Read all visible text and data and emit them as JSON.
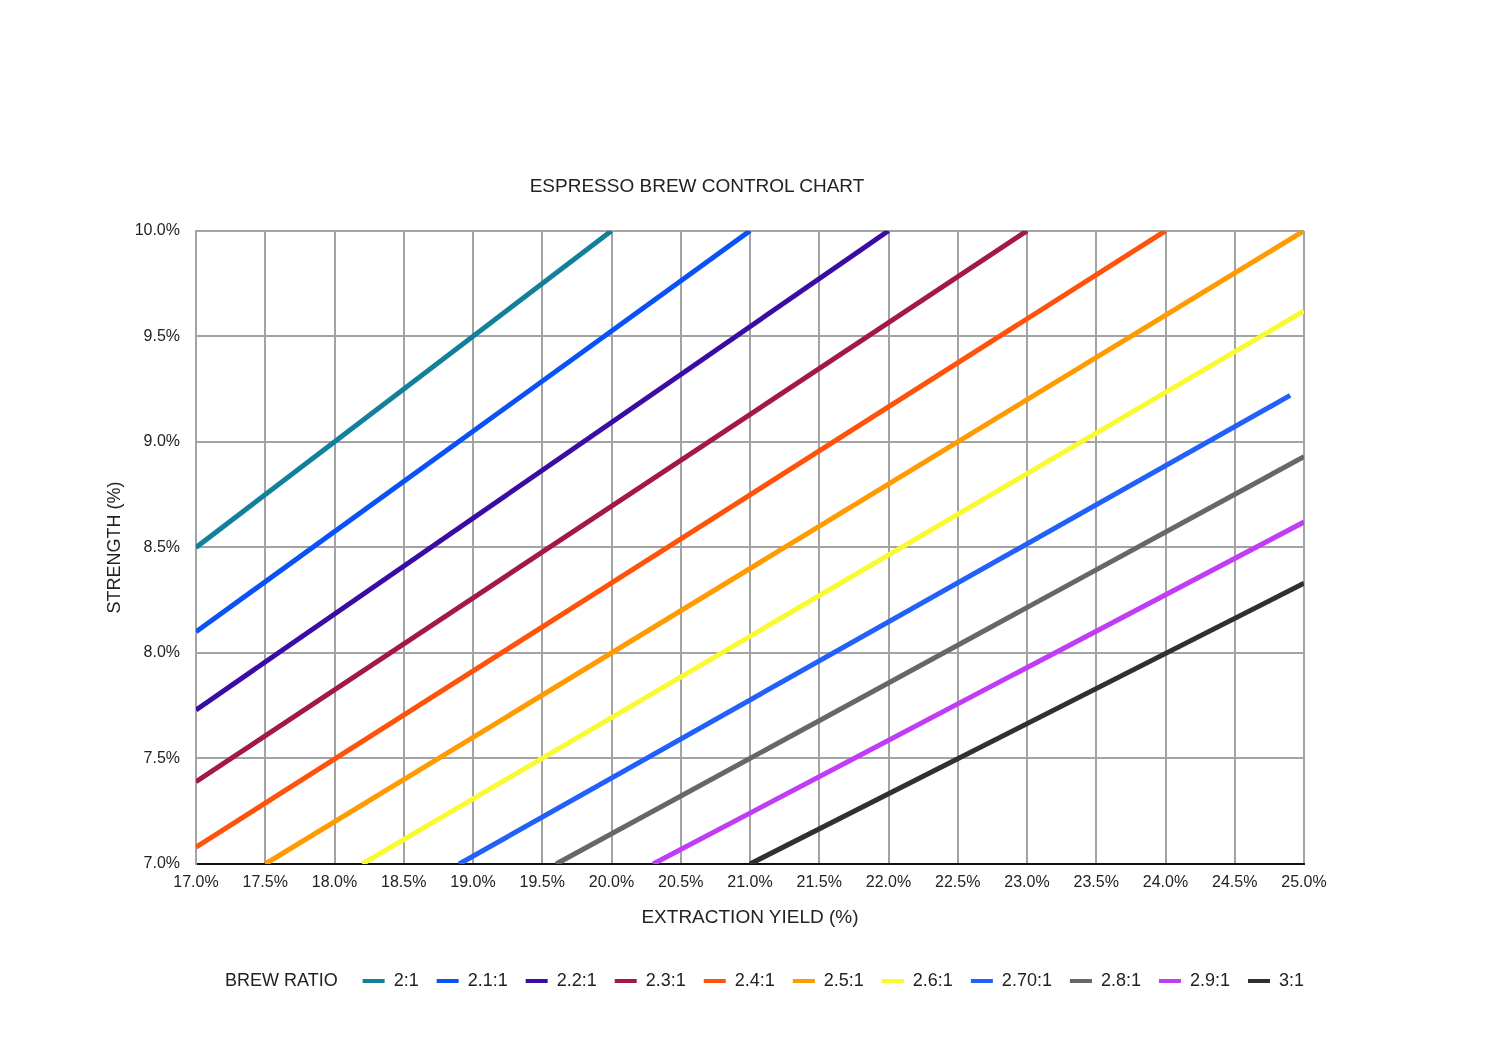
{
  "chart_data": {
    "type": "line",
    "title": "ESPRESSO BREW CONTROL CHART",
    "xlabel": "EXTRACTION YIELD (%)",
    "ylabel": "STRENGTH (%)",
    "legend_title": "BREW RATIO",
    "legend": "bottom",
    "grid": true,
    "marker": "none",
    "line_style": "solid",
    "xlim": [
      17,
      25
    ],
    "xticks": [
      {
        "value": 17,
        "label": "17.0%"
      },
      {
        "value": 17.5,
        "label": "17.5%"
      },
      {
        "value": 18,
        "label": "18.0%"
      },
      {
        "value": 18.5,
        "label": "18.5%"
      },
      {
        "value": 19,
        "label": "19.0%"
      },
      {
        "value": 19.5,
        "label": "19.5%"
      },
      {
        "value": 20,
        "label": "20.0%"
      },
      {
        "value": 20.5,
        "label": "20.5%"
      },
      {
        "value": 21,
        "label": "21.0%"
      },
      {
        "value": 21.5,
        "label": "21.5%"
      },
      {
        "value": 22,
        "label": "22.0%"
      },
      {
        "value": 22.5,
        "label": "22.5%"
      },
      {
        "value": 23,
        "label": "23.0%"
      },
      {
        "value": 23.5,
        "label": "23.5%"
      },
      {
        "value": 24,
        "label": "24.0%"
      },
      {
        "value": 24.5,
        "label": "24.5%"
      },
      {
        "value": 25,
        "label": "25.0%"
      }
    ],
    "ylim": [
      7,
      10
    ],
    "yticks": [
      {
        "value": 7,
        "label": "7.0%"
      },
      {
        "value": 7.5,
        "label": "7.5%"
      },
      {
        "value": 8,
        "label": "8.0%"
      },
      {
        "value": 8.5,
        "label": "8.5%"
      },
      {
        "value": 9,
        "label": "9.0%"
      },
      {
        "value": 9.5,
        "label": "9.5%"
      },
      {
        "value": 10,
        "label": "10.0%"
      }
    ],
    "series": [
      {
        "name": "2:1",
        "color": "#13809b",
        "x": [
          17.0,
          20.0
        ],
        "values": [
          8.5,
          10.0
        ]
      },
      {
        "name": "2.1:1",
        "color": "#0a52f5",
        "x": [
          17.0,
          21.0
        ],
        "values": [
          8.1,
          10.0
        ]
      },
      {
        "name": "2.2:1",
        "color": "#3b0ca3",
        "x": [
          17.0,
          22.0
        ],
        "values": [
          7.73,
          10.0
        ]
      },
      {
        "name": "2.3:1",
        "color": "#a3184b",
        "x": [
          17.0,
          23.0
        ],
        "values": [
          7.39,
          10.0
        ]
      },
      {
        "name": "2.4:1",
        "color": "#ff520a",
        "x": [
          17.0,
          24.0
        ],
        "values": [
          7.08,
          10.0
        ]
      },
      {
        "name": "2.5:1",
        "color": "#ff9a00",
        "x": [
          17.5,
          25.0
        ],
        "values": [
          7.0,
          10.0
        ]
      },
      {
        "name": "2.6:1",
        "color": "#fafa32",
        "x": [
          18.2,
          25.0
        ],
        "values": [
          7.0,
          9.62
        ]
      },
      {
        "name": "2.70:1",
        "color": "#2260fa",
        "x": [
          18.9,
          24.9
        ],
        "values": [
          7.0,
          9.22
        ]
      },
      {
        "name": "2.8:1",
        "color": "#676767",
        "x": [
          19.6,
          25.0
        ],
        "values": [
          7.0,
          8.93
        ]
      },
      {
        "name": "2.9:1",
        "color": "#c03cf5",
        "x": [
          20.3,
          25.0
        ],
        "values": [
          7.0,
          8.62
        ]
      },
      {
        "name": "3:1",
        "color": "#303030",
        "x": [
          21.0,
          25.0
        ],
        "values": [
          7.0,
          8.33
        ]
      }
    ]
  }
}
